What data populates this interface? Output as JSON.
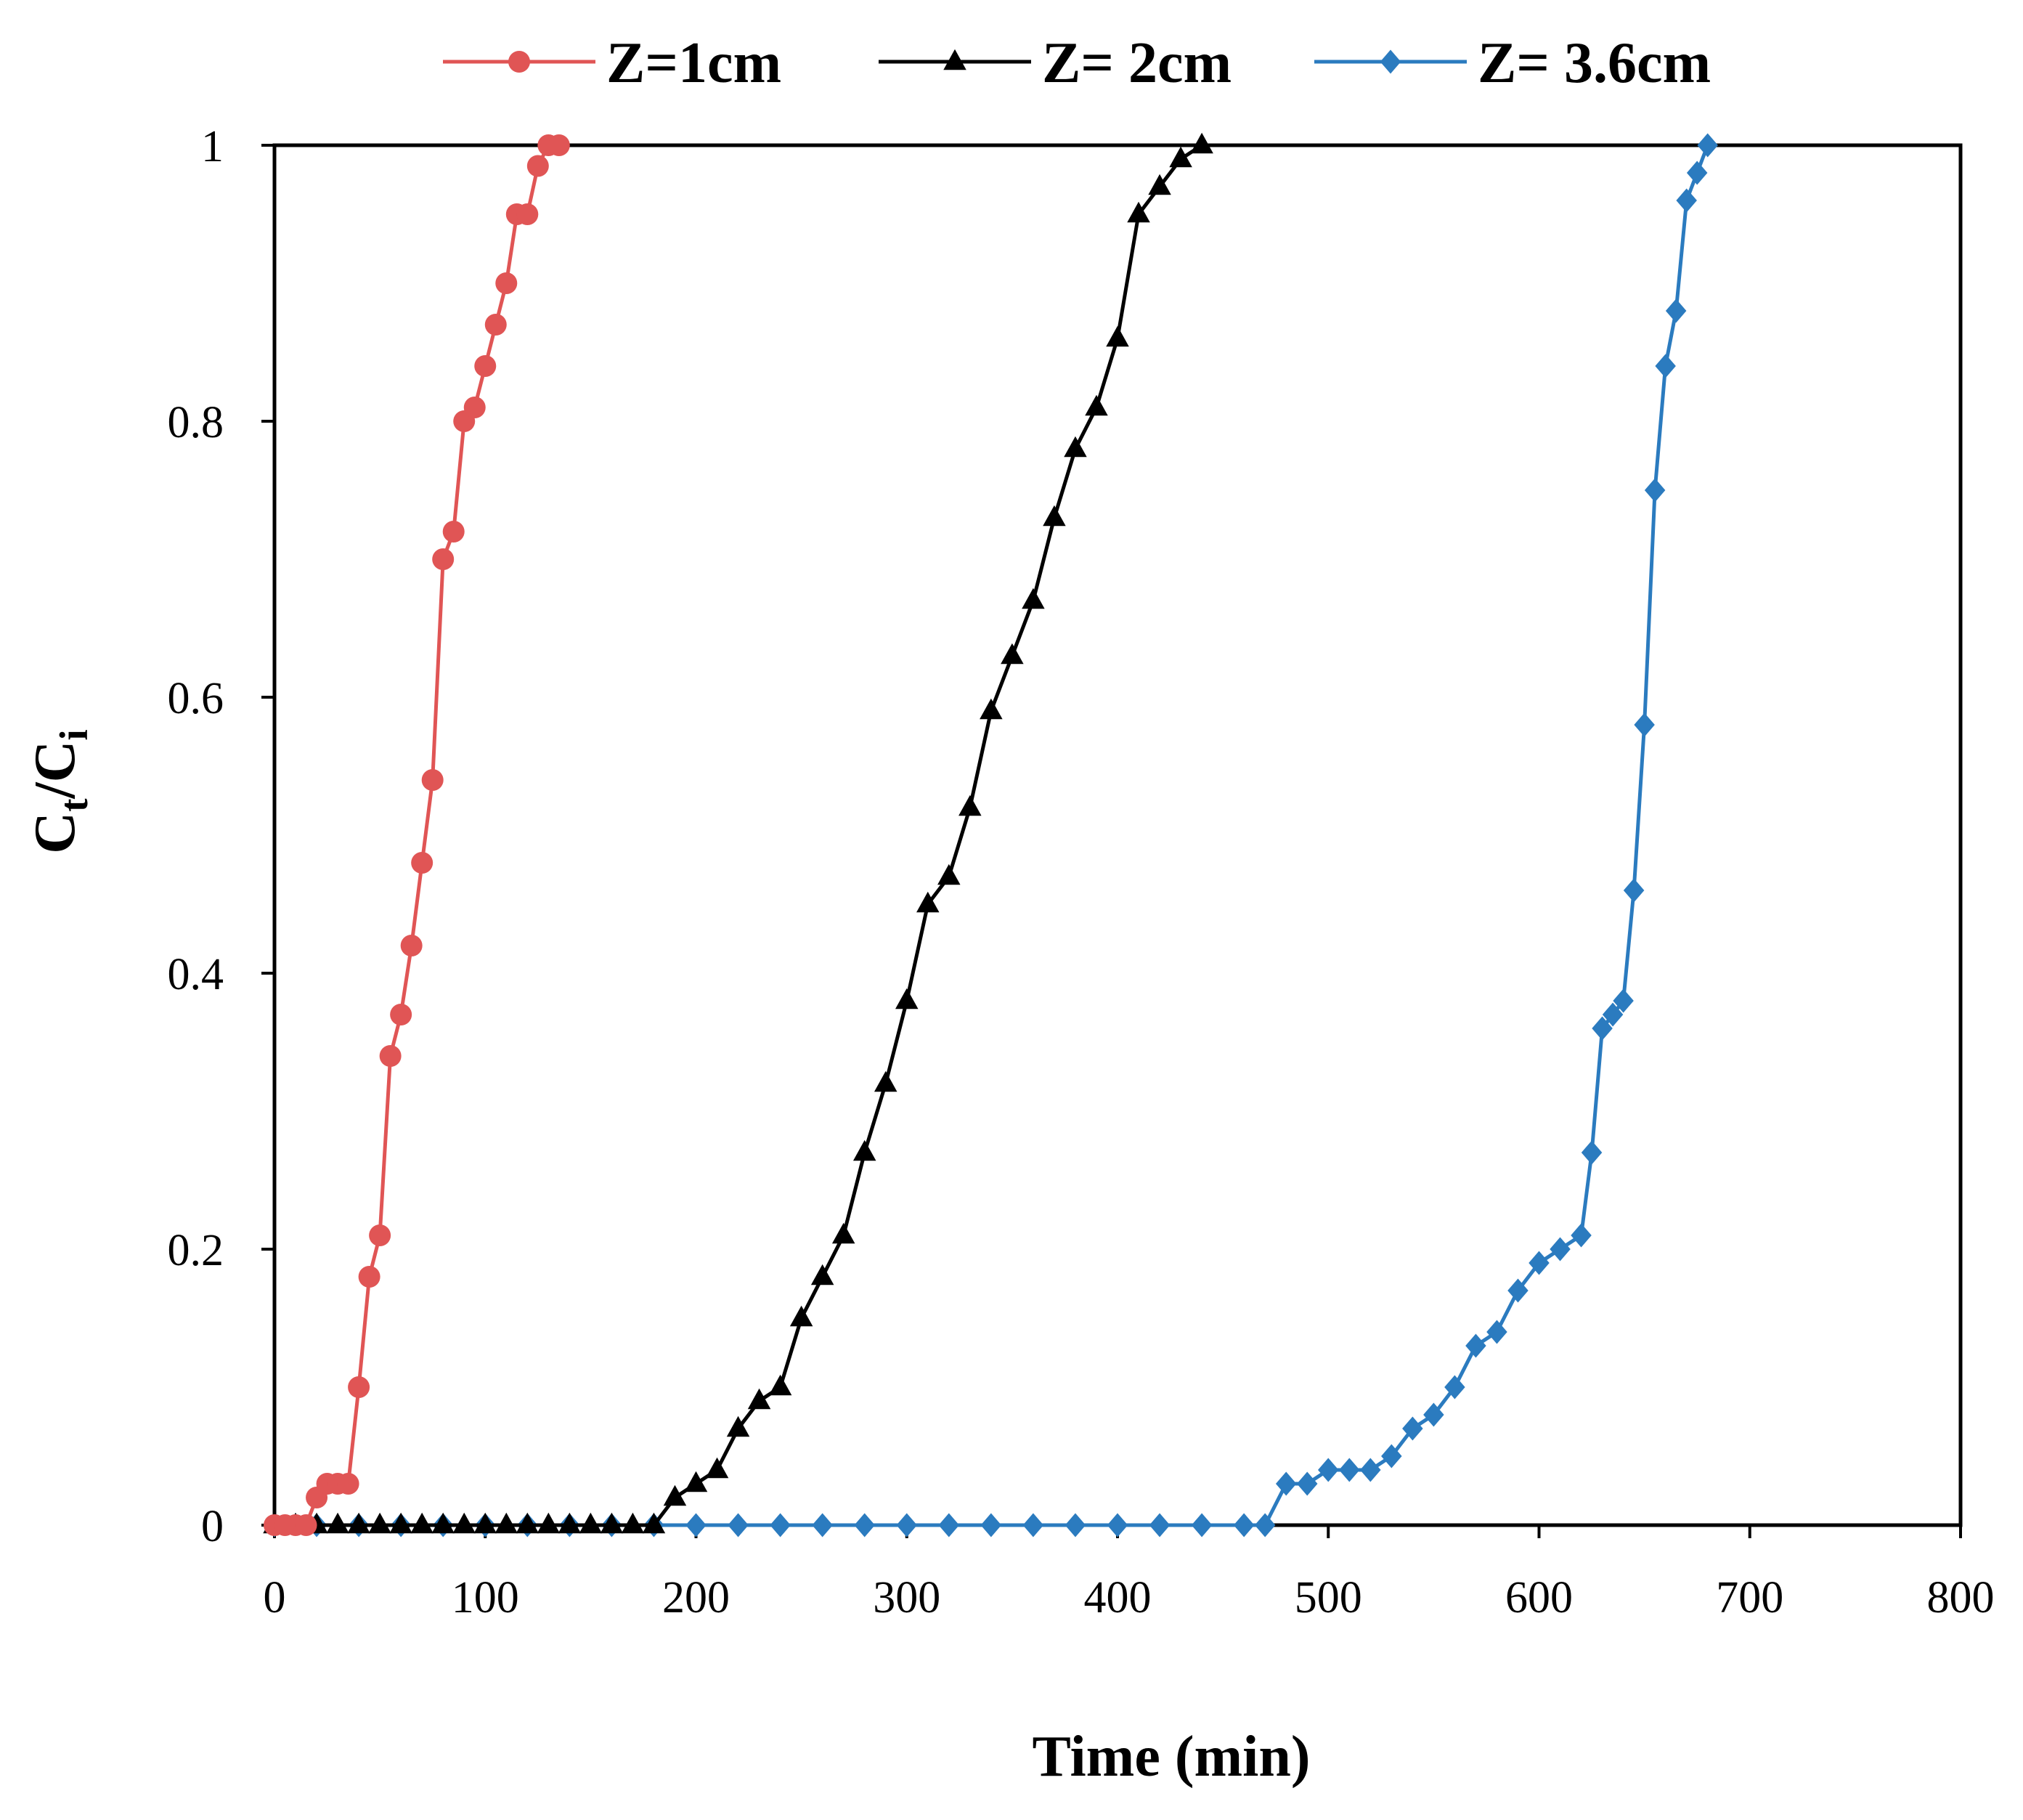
{
  "chart_data": {
    "type": "line",
    "title": "",
    "xlabel": "Time (min)",
    "ylabel": {
      "base": "C",
      "sub1": "t",
      "slash": "/",
      "base2": "C",
      "sub2": "i"
    },
    "xlim": [
      0,
      800
    ],
    "ylim": [
      0,
      1
    ],
    "x_ticks": [
      0,
      100,
      200,
      300,
      400,
      500,
      600,
      700,
      800
    ],
    "y_ticks": [
      0,
      0.2,
      0.4,
      0.6,
      0.8,
      1
    ],
    "grid": false,
    "legend_position": "top",
    "series": [
      {
        "name": "Z=1cm",
        "color": "#e05555",
        "marker": "circle",
        "x": [
          0,
          5,
          10,
          15,
          20,
          25,
          30,
          35,
          40,
          45,
          50,
          55,
          60,
          65,
          70,
          75,
          80,
          85,
          90,
          95,
          100,
          105,
          110,
          115,
          120,
          125,
          130,
          135
        ],
        "y": [
          0,
          0,
          0,
          0,
          0.02,
          0.03,
          0.03,
          0.03,
          0.1,
          0.18,
          0.21,
          0.34,
          0.37,
          0.42,
          0.48,
          0.54,
          0.7,
          0.72,
          0.8,
          0.81,
          0.84,
          0.87,
          0.9,
          0.95,
          0.95,
          0.985,
          1.0,
          1.0
        ]
      },
      {
        "name": "Z= 2cm",
        "color": "#000000",
        "marker": "triangle",
        "x": [
          0,
          10,
          20,
          30,
          40,
          50,
          60,
          70,
          80,
          90,
          100,
          110,
          120,
          130,
          140,
          150,
          160,
          170,
          180,
          190,
          200,
          210,
          220,
          230,
          240,
          250,
          260,
          270,
          280,
          290,
          300,
          310,
          320,
          330,
          340,
          350,
          360,
          370,
          380,
          390,
          400,
          410,
          420,
          430,
          440
        ],
        "y": [
          0,
          0,
          0,
          0,
          0,
          0,
          0,
          0,
          0,
          0,
          0,
          0,
          0,
          0,
          0,
          0,
          0,
          0,
          0,
          0.02,
          0.03,
          0.04,
          0.07,
          0.09,
          0.1,
          0.15,
          0.18,
          0.21,
          0.27,
          0.32,
          0.38,
          0.45,
          0.47,
          0.52,
          0.59,
          0.63,
          0.67,
          0.73,
          0.78,
          0.81,
          0.86,
          0.95,
          0.97,
          0.99,
          1.0
        ]
      },
      {
        "name": "Z= 3.6cm",
        "color": "#2b7bbf",
        "marker": "diamond",
        "x": [
          0,
          20,
          40,
          60,
          80,
          100,
          120,
          140,
          160,
          180,
          200,
          220,
          240,
          260,
          280,
          300,
          320,
          340,
          360,
          380,
          400,
          420,
          440,
          460,
          470,
          480,
          490,
          500,
          510,
          520,
          530,
          540,
          550,
          560,
          570,
          580,
          590,
          600,
          610,
          620,
          625,
          630,
          635,
          640,
          645,
          650,
          655,
          660,
          665,
          670,
          675,
          680
        ],
        "y": [
          0,
          0,
          0,
          0,
          0,
          0,
          0,
          0,
          0,
          0,
          0,
          0,
          0,
          0,
          0,
          0,
          0,
          0,
          0,
          0,
          0,
          0,
          0,
          0,
          0,
          0.03,
          0.03,
          0.04,
          0.04,
          0.04,
          0.05,
          0.07,
          0.08,
          0.1,
          0.13,
          0.14,
          0.17,
          0.19,
          0.2,
          0.21,
          0.27,
          0.36,
          0.37,
          0.38,
          0.46,
          0.58,
          0.75,
          0.84,
          0.88,
          0.96,
          0.98,
          1.0
        ]
      }
    ]
  }
}
